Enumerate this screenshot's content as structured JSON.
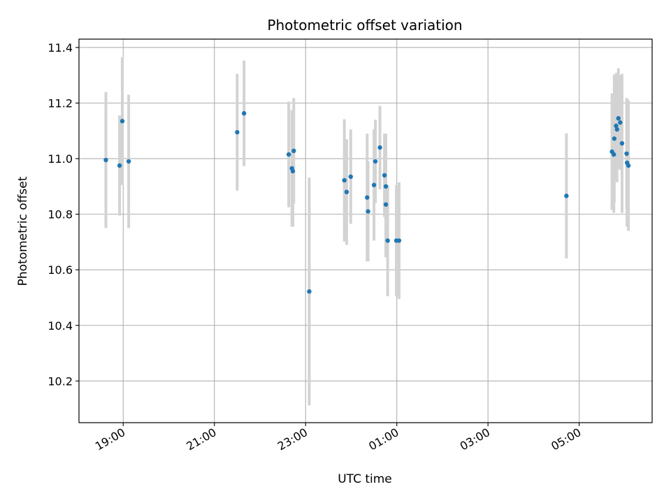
{
  "chart_data": {
    "type": "scatter",
    "title": "Photometric offset variation",
    "xlabel": "UTC time",
    "ylabel": "Photometric offset",
    "x_unit": "hours (UTC), values past midnight continue beyond 24",
    "xlim": [
      18.03,
      30.6
    ],
    "ylim": [
      10.05,
      11.43
    ],
    "x_ticks": [
      {
        "value": 19,
        "label": "19:00"
      },
      {
        "value": 21,
        "label": "21:00"
      },
      {
        "value": 23,
        "label": "23:00"
      },
      {
        "value": 25,
        "label": "01:00"
      },
      {
        "value": 27,
        "label": "03:00"
      },
      {
        "value": 29,
        "label": "05:00"
      }
    ],
    "y_ticks": [
      {
        "value": 10.2,
        "label": "10.2"
      },
      {
        "value": 10.4,
        "label": "10.4"
      },
      {
        "value": 10.6,
        "label": "10.6"
      },
      {
        "value": 10.8,
        "label": "10.8"
      },
      {
        "value": 11.0,
        "label": "11.0"
      },
      {
        "value": 11.2,
        "label": "11.2"
      },
      {
        "value": 11.4,
        "label": "11.4"
      }
    ],
    "grid": true,
    "marker_color": "#1f77b4",
    "errorbar_color": "#d3d3d3",
    "points": [
      {
        "x": 18.62,
        "y": 10.995,
        "err": 0.245
      },
      {
        "x": 18.92,
        "y": 10.975,
        "err": 0.18
      },
      {
        "x": 18.98,
        "y": 11.135,
        "err": 0.23
      },
      {
        "x": 19.12,
        "y": 10.99,
        "err": 0.24
      },
      {
        "x": 21.5,
        "y": 11.095,
        "err": 0.21
      },
      {
        "x": 21.65,
        "y": 11.163,
        "err": 0.19
      },
      {
        "x": 22.63,
        "y": 11.015,
        "err": 0.19
      },
      {
        "x": 22.7,
        "y": 10.965,
        "err": 0.21
      },
      {
        "x": 22.72,
        "y": 10.955,
        "err": 0.2
      },
      {
        "x": 22.74,
        "y": 11.028,
        "err": 0.19
      },
      {
        "x": 23.08,
        "y": 10.522,
        "err": 0.41
      },
      {
        "x": 23.85,
        "y": 10.922,
        "err": 0.22
      },
      {
        "x": 23.9,
        "y": 10.88,
        "err": 0.19
      },
      {
        "x": 23.99,
        "y": 10.935,
        "err": 0.17
      },
      {
        "x": 24.35,
        "y": 10.86,
        "err": 0.23
      },
      {
        "x": 24.37,
        "y": 10.81,
        "err": 0.18
      },
      {
        "x": 24.5,
        "y": 10.905,
        "err": 0.2
      },
      {
        "x": 24.53,
        "y": 10.99,
        "err": 0.15
      },
      {
        "x": 24.63,
        "y": 11.04,
        "err": 0.15
      },
      {
        "x": 24.73,
        "y": 10.94,
        "err": 0.15
      },
      {
        "x": 24.76,
        "y": 10.9,
        "err": 0.19
      },
      {
        "x": 24.76,
        "y": 10.835,
        "err": 0.19
      },
      {
        "x": 24.8,
        "y": 10.705,
        "err": 0.2
      },
      {
        "x": 24.99,
        "y": 10.705,
        "err": 0.2
      },
      {
        "x": 25.05,
        "y": 10.705,
        "err": 0.21
      },
      {
        "x": 28.72,
        "y": 10.866,
        "err": 0.225
      },
      {
        "x": 29.72,
        "y": 11.025,
        "err": 0.21
      },
      {
        "x": 29.76,
        "y": 11.015,
        "err": 0.21
      },
      {
        "x": 29.77,
        "y": 11.072,
        "err": 0.23
      },
      {
        "x": 29.81,
        "y": 11.118,
        "err": 0.19
      },
      {
        "x": 29.83,
        "y": 11.105,
        "err": 0.19
      },
      {
        "x": 29.86,
        "y": 11.145,
        "err": 0.18
      },
      {
        "x": 29.9,
        "y": 11.13,
        "err": 0.17
      },
      {
        "x": 29.94,
        "y": 11.055,
        "err": 0.25
      },
      {
        "x": 30.04,
        "y": 11.018,
        "err": 0.2
      },
      {
        "x": 30.05,
        "y": 10.985,
        "err": 0.23
      },
      {
        "x": 30.08,
        "y": 10.975,
        "err": 0.235
      }
    ]
  }
}
